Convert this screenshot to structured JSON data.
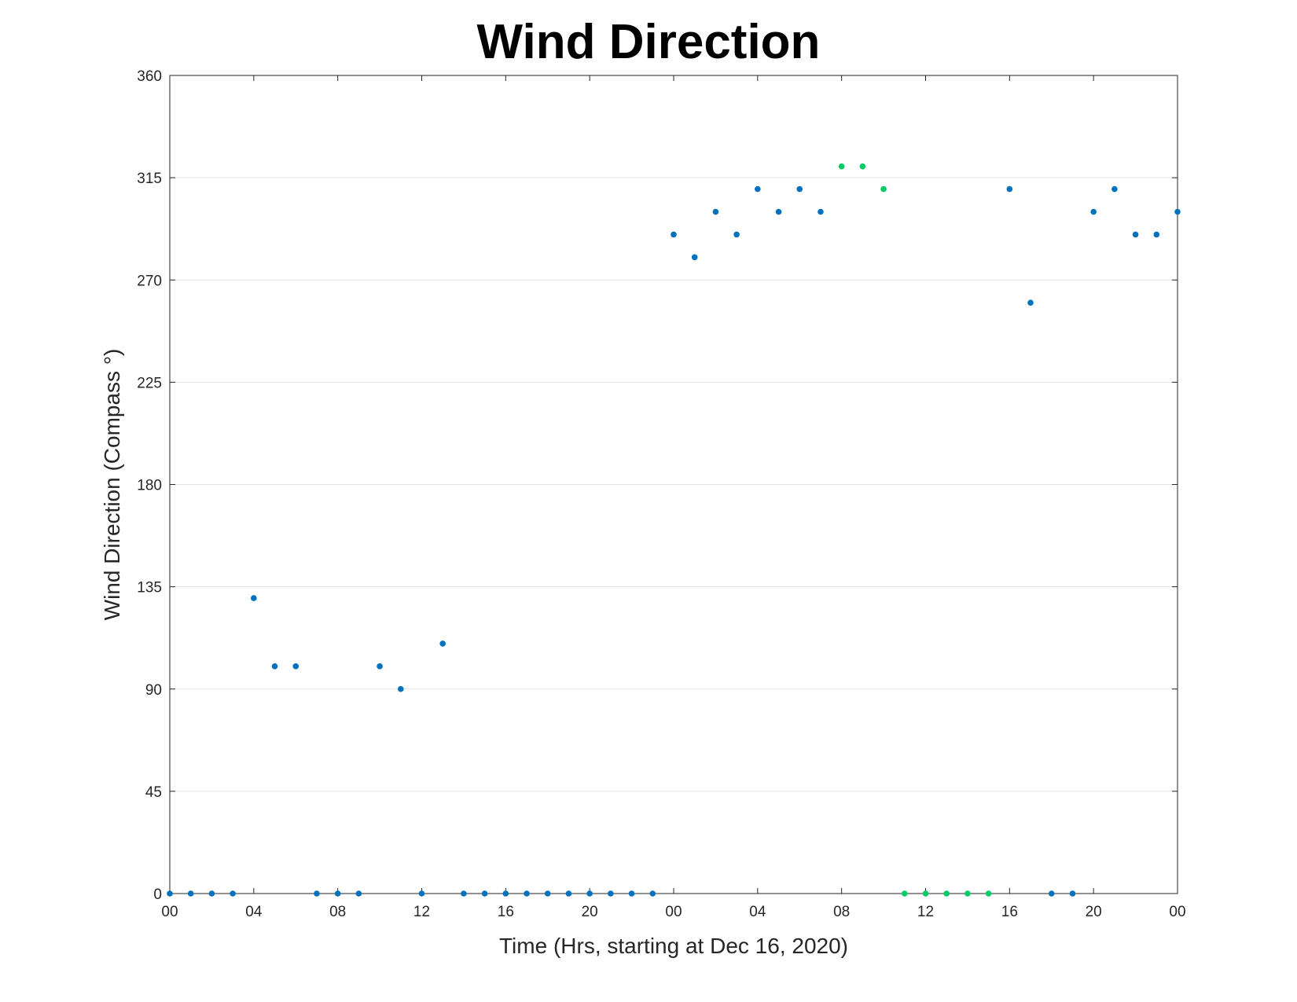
{
  "chart_data": {
    "type": "scatter",
    "title": "Wind Direction",
    "xlabel": "Time (Hrs, starting at Dec 16, 2020)",
    "ylabel": "Wind Direction (Compass °)",
    "xlim": [
      0,
      48
    ],
    "ylim": [
      0,
      360
    ],
    "y_ticks": [
      0,
      45,
      90,
      135,
      180,
      225,
      270,
      315,
      360
    ],
    "x_ticks": [
      0,
      4,
      8,
      12,
      16,
      20,
      24,
      28,
      32,
      36,
      40,
      44,
      48
    ],
    "x_tick_labels": [
      "00",
      "04",
      "08",
      "12",
      "16",
      "20",
      "00",
      "04",
      "08",
      "12",
      "16",
      "20",
      "00"
    ],
    "grid": "y",
    "colors": {
      "normal": "#0072BD",
      "highlight": "#00CC66"
    },
    "points": [
      {
        "x": 0,
        "y": 0,
        "c": "normal"
      },
      {
        "x": 1,
        "y": 0,
        "c": "normal"
      },
      {
        "x": 2,
        "y": 0,
        "c": "normal"
      },
      {
        "x": 3,
        "y": 0,
        "c": "normal"
      },
      {
        "x": 4,
        "y": 130,
        "c": "normal"
      },
      {
        "x": 5,
        "y": 100,
        "c": "normal"
      },
      {
        "x": 6,
        "y": 100,
        "c": "normal"
      },
      {
        "x": 7,
        "y": 0,
        "c": "normal"
      },
      {
        "x": 8,
        "y": 0,
        "c": "normal"
      },
      {
        "x": 9,
        "y": 0,
        "c": "normal"
      },
      {
        "x": 10,
        "y": 100,
        "c": "normal"
      },
      {
        "x": 11,
        "y": 90,
        "c": "normal"
      },
      {
        "x": 12,
        "y": 0,
        "c": "normal"
      },
      {
        "x": 13,
        "y": 110,
        "c": "normal"
      },
      {
        "x": 14,
        "y": 0,
        "c": "normal"
      },
      {
        "x": 15,
        "y": 0,
        "c": "normal"
      },
      {
        "x": 16,
        "y": 0,
        "c": "normal"
      },
      {
        "x": 17,
        "y": 0,
        "c": "normal"
      },
      {
        "x": 18,
        "y": 0,
        "c": "normal"
      },
      {
        "x": 19,
        "y": 0,
        "c": "normal"
      },
      {
        "x": 20,
        "y": 0,
        "c": "normal"
      },
      {
        "x": 21,
        "y": 0,
        "c": "normal"
      },
      {
        "x": 22,
        "y": 0,
        "c": "normal"
      },
      {
        "x": 23,
        "y": 0,
        "c": "normal"
      },
      {
        "x": 24,
        "y": 290,
        "c": "normal"
      },
      {
        "x": 25,
        "y": 280,
        "c": "normal"
      },
      {
        "x": 26,
        "y": 300,
        "c": "normal"
      },
      {
        "x": 27,
        "y": 290,
        "c": "normal"
      },
      {
        "x": 28,
        "y": 310,
        "c": "normal"
      },
      {
        "x": 29,
        "y": 300,
        "c": "normal"
      },
      {
        "x": 30,
        "y": 310,
        "c": "normal"
      },
      {
        "x": 31,
        "y": 300,
        "c": "normal"
      },
      {
        "x": 32,
        "y": 320,
        "c": "highlight"
      },
      {
        "x": 33,
        "y": 320,
        "c": "highlight"
      },
      {
        "x": 34,
        "y": 310,
        "c": "highlight"
      },
      {
        "x": 35,
        "y": 0,
        "c": "highlight"
      },
      {
        "x": 36,
        "y": 0,
        "c": "highlight"
      },
      {
        "x": 37,
        "y": 0,
        "c": "highlight"
      },
      {
        "x": 38,
        "y": 0,
        "c": "highlight"
      },
      {
        "x": 39,
        "y": 0,
        "c": "highlight"
      },
      {
        "x": 40,
        "y": 310,
        "c": "normal"
      },
      {
        "x": 41,
        "y": 260,
        "c": "normal"
      },
      {
        "x": 42,
        "y": 0,
        "c": "normal"
      },
      {
        "x": 43,
        "y": 0,
        "c": "normal"
      },
      {
        "x": 44,
        "y": 300,
        "c": "normal"
      },
      {
        "x": 45,
        "y": 310,
        "c": "normal"
      },
      {
        "x": 46,
        "y": 290,
        "c": "normal"
      },
      {
        "x": 47,
        "y": 290,
        "c": "normal"
      },
      {
        "x": 48,
        "y": 300,
        "c": "normal"
      }
    ]
  }
}
